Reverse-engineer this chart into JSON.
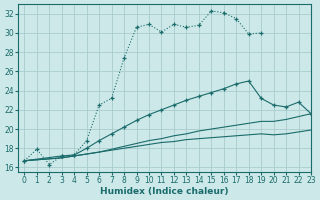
{
  "bg_color": "#cde8e8",
  "grid_color": "#aacccc",
  "line_color": "#1a6b6b",
  "xlabel": "Humidex (Indice chaleur)",
  "xlim": [
    -0.5,
    23
  ],
  "ylim": [
    15.5,
    33
  ],
  "xticks": [
    0,
    1,
    2,
    3,
    4,
    5,
    6,
    7,
    8,
    9,
    10,
    11,
    12,
    13,
    14,
    15,
    16,
    17,
    18,
    19,
    20,
    21,
    22,
    23
  ],
  "yticks": [
    16,
    18,
    20,
    22,
    24,
    26,
    28,
    30,
    32
  ],
  "curve1_x": [
    0,
    1,
    2,
    3,
    4,
    5,
    6,
    7,
    8,
    9,
    10,
    11,
    12,
    13,
    14,
    15,
    16,
    17,
    18,
    19
  ],
  "curve1_y": [
    16.7,
    17.9,
    16.3,
    17.2,
    17.3,
    18.8,
    22.5,
    23.2,
    27.4,
    30.6,
    30.9,
    30.1,
    30.9,
    30.6,
    30.8,
    32.3,
    32.1,
    31.5,
    29.9,
    30.0
  ],
  "curve2_x": [
    0,
    3,
    4,
    5,
    6,
    7,
    8,
    9,
    10,
    11,
    12,
    13,
    14,
    15,
    16,
    17,
    18,
    19,
    20,
    21,
    22,
    23
  ],
  "curve2_y": [
    16.7,
    17.2,
    17.3,
    18.0,
    18.8,
    19.5,
    20.2,
    20.9,
    21.5,
    22.0,
    22.5,
    23.0,
    23.4,
    23.8,
    24.2,
    24.7,
    25.0,
    23.2,
    22.5,
    22.3,
    22.8,
    21.6
  ],
  "curve3_x": [
    0,
    3,
    4,
    5,
    6,
    7,
    8,
    9,
    10,
    11,
    12,
    13,
    14,
    15,
    16,
    17,
    18,
    19,
    20,
    21,
    22,
    23
  ],
  "curve3_y": [
    16.7,
    17.0,
    17.2,
    17.4,
    17.6,
    17.9,
    18.2,
    18.5,
    18.8,
    19.0,
    19.3,
    19.5,
    19.8,
    20.0,
    20.2,
    20.4,
    20.6,
    20.8,
    20.8,
    21.0,
    21.3,
    21.6
  ],
  "curve4_x": [
    0,
    3,
    4,
    5,
    6,
    7,
    8,
    9,
    10,
    11,
    12,
    13,
    14,
    15,
    16,
    17,
    18,
    19,
    20,
    21,
    22,
    23
  ],
  "curve4_y": [
    16.7,
    17.0,
    17.2,
    17.4,
    17.6,
    17.8,
    18.0,
    18.2,
    18.4,
    18.6,
    18.7,
    18.9,
    19.0,
    19.1,
    19.2,
    19.3,
    19.4,
    19.5,
    19.4,
    19.5,
    19.7,
    19.9
  ]
}
